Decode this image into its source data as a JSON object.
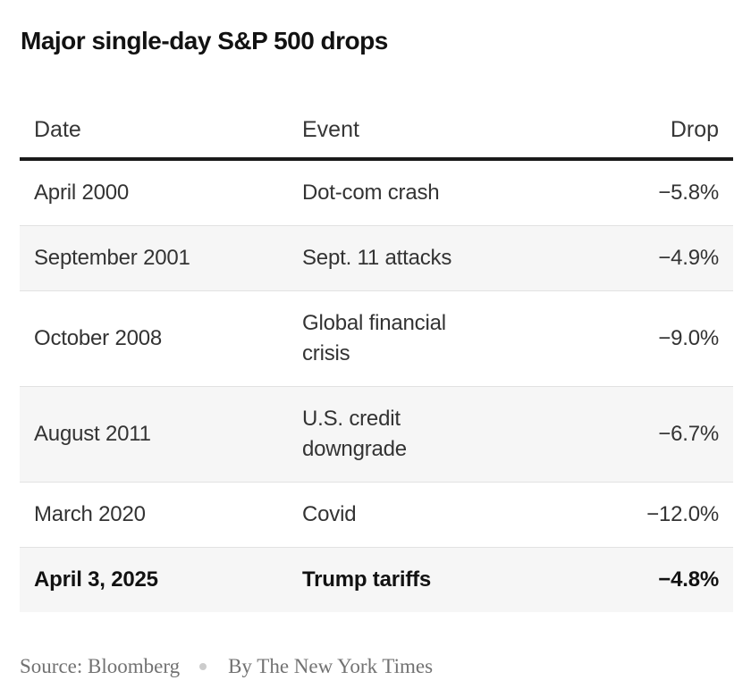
{
  "title": "Major single-day S&P 500 drops",
  "chart_data": {
    "type": "table",
    "title": "Major single-day S&P 500 drops",
    "columns": [
      "Date",
      "Event",
      "Drop"
    ],
    "rows": [
      {
        "date": "April 2000",
        "event": "Dot-com crash",
        "drop": "−5.8%",
        "drop_pct": -5.8,
        "bold": false
      },
      {
        "date": "September 2001",
        "event": "Sept. 11 attacks",
        "drop": "−4.9%",
        "drop_pct": -4.9,
        "bold": false
      },
      {
        "date": "October 2008",
        "event": "Global financial\ncrisis",
        "drop": "−9.0%",
        "drop_pct": -9.0,
        "bold": false
      },
      {
        "date": "August 2011",
        "event": "U.S. credit\ndowngrade",
        "drop": "−6.7%",
        "drop_pct": -6.7,
        "bold": false
      },
      {
        "date": "March 2020",
        "event": "Covid",
        "drop": "−12.0%",
        "drop_pct": -12.0,
        "bold": false
      },
      {
        "date": "April 3, 2025",
        "event": "Trump tariffs",
        "drop": "−4.8%",
        "drop_pct": -4.8,
        "bold": true
      }
    ],
    "source": "Source: Bloomberg",
    "byline": "By The New York Times"
  },
  "colors": {
    "background": "#ffffff",
    "title": "#121212",
    "header_text": "#363636",
    "body_text": "#333333",
    "bold_text": "#121212",
    "stripe": "#f6f6f6",
    "row_border": "#e2e2e2",
    "header_rule": "#1a1a1a",
    "footer_text": "#727272",
    "dot": "#cccccc"
  }
}
